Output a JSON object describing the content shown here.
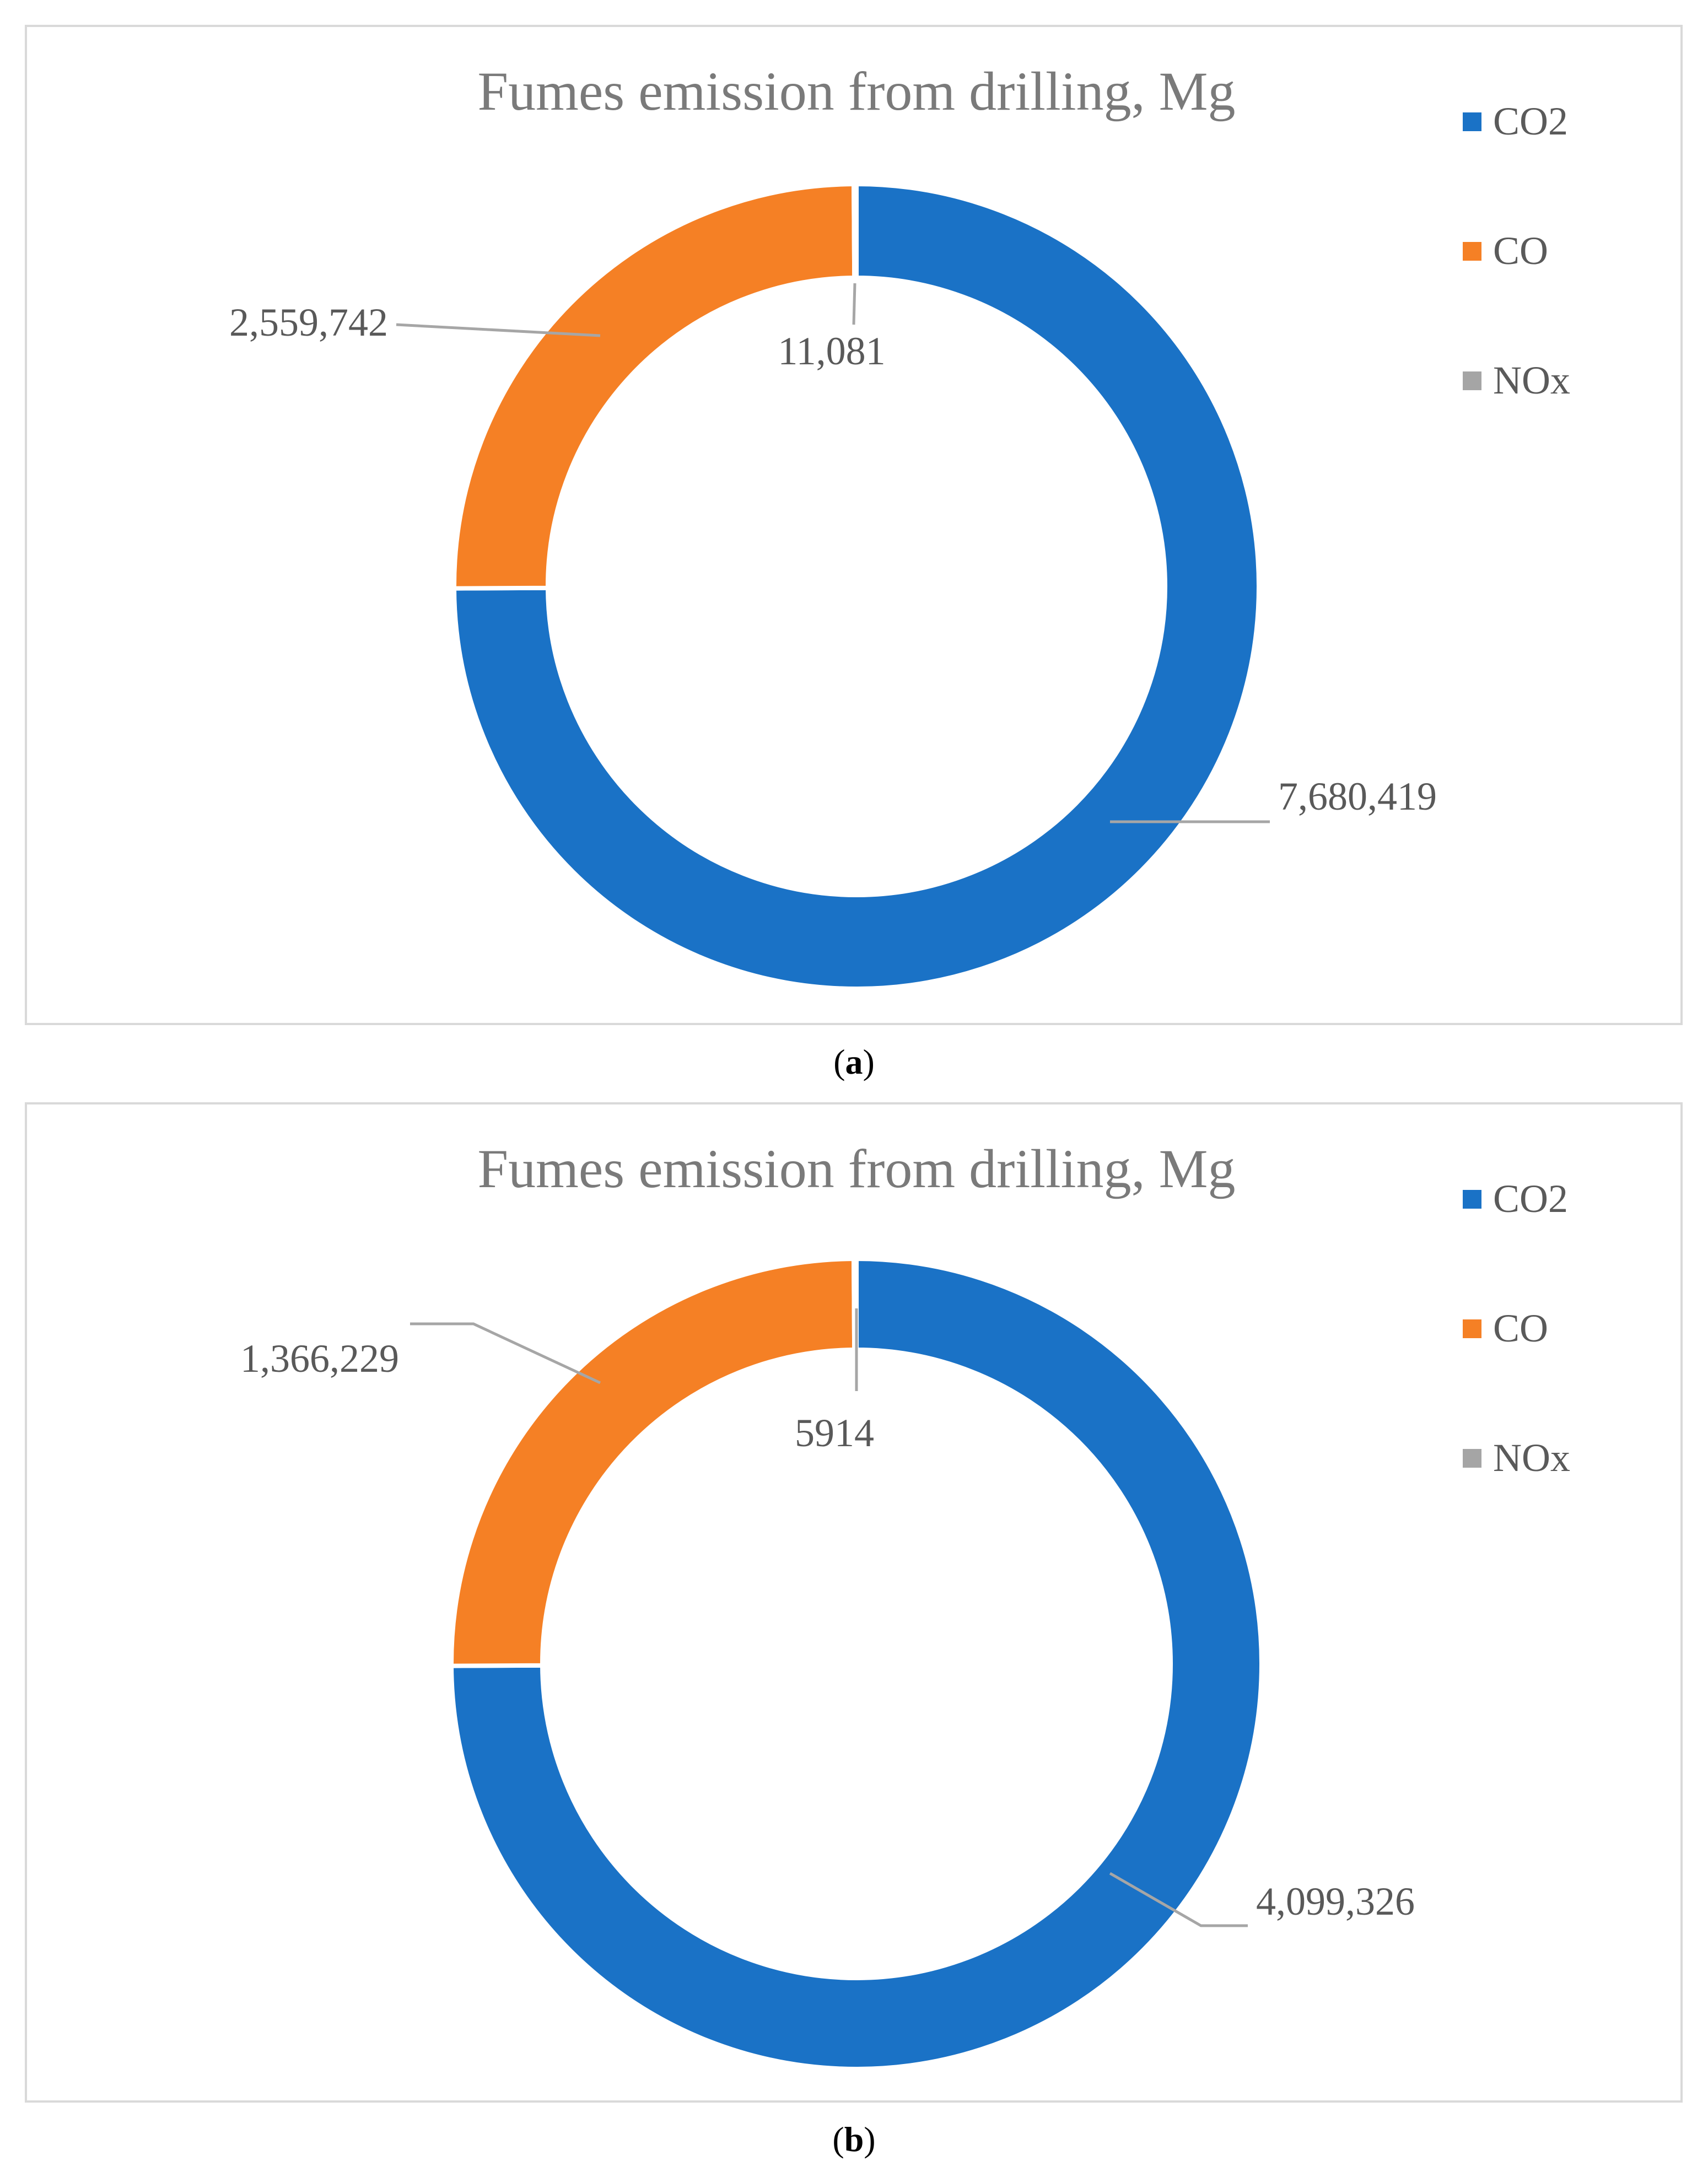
{
  "chart_data": [
    {
      "type": "donut",
      "title": "Fumes emission from drilling, Mg",
      "caption_letter": "a",
      "categories": [
        "CO2",
        "CO",
        "NOx"
      ],
      "values": [
        7680419,
        2559742,
        11081
      ],
      "value_labels": [
        "7,680,419",
        "2,559,742",
        "11,081"
      ],
      "colors": [
        "#1a72c6",
        "#f58025",
        "#a5a5a5"
      ],
      "legend_position": "right",
      "unit": "Mg"
    },
    {
      "type": "donut",
      "title": "Fumes emission from drilling, Mg",
      "caption_letter": "b",
      "categories": [
        "CO2",
        "CO",
        "NOx"
      ],
      "values": [
        4099326,
        1366229,
        5914
      ],
      "value_labels": [
        "4,099,326",
        "1,366,229",
        "5914"
      ],
      "colors": [
        "#1a72c6",
        "#f58025",
        "#a5a5a5"
      ],
      "legend_position": "right",
      "unit": "Mg"
    }
  ],
  "captions": {
    "a": {
      "open": "(",
      "letter": "a",
      "close": ")"
    },
    "b": {
      "open": "(",
      "letter": "b",
      "close": ")"
    }
  }
}
